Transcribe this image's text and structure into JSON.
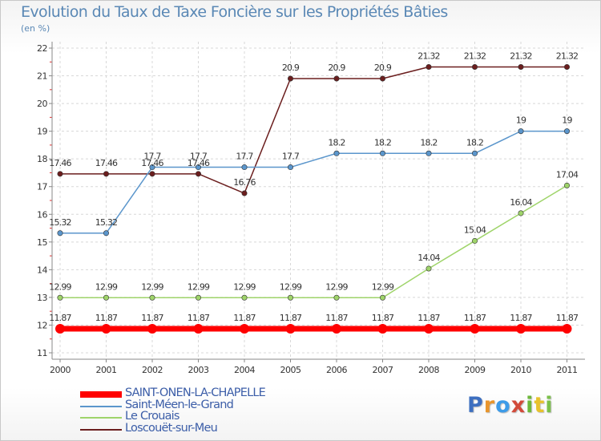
{
  "header": {
    "title": "Evolution du Taux de Taxe Foncière sur les Propriétés Bâties",
    "subtitle": "(en %)"
  },
  "brand": {
    "letters": [
      {
        "char": "P",
        "color": "#3d6fc0"
      },
      {
        "char": "r",
        "color": "#e8952c"
      },
      {
        "char": "o",
        "color": "#3d9be8"
      },
      {
        "char": "x",
        "color": "#d24a3a"
      },
      {
        "char": "i",
        "color": "#6db83a"
      },
      {
        "char": "t",
        "color": "#e8c22c"
      },
      {
        "char": "i",
        "color": "#7bc04a"
      }
    ]
  },
  "chart_data": {
    "type": "line",
    "title": "Evolution du Taux de Taxe Foncière sur les Propriétés Bâties",
    "ylabel": "(en %)",
    "x": [
      "2000",
      "2001",
      "2002",
      "2003",
      "2004",
      "2005",
      "2006",
      "2007",
      "2008",
      "2009",
      "2010",
      "2011"
    ],
    "ylim": [
      11,
      22
    ],
    "yticks": [
      11,
      12,
      13,
      14,
      15,
      16,
      17,
      18,
      19,
      20,
      21,
      22
    ],
    "grid": true,
    "legend_position": "bottom-left",
    "series": [
      {
        "name": "Loscouët-sur-Meu",
        "color": "#6b1e1e",
        "values": [
          17.46,
          17.46,
          17.46,
          17.46,
          16.76,
          20.9,
          20.9,
          20.9,
          21.32,
          21.32,
          21.32,
          21.32
        ],
        "labels": [
          "17.46",
          "17.46",
          "17.46",
          "17.46",
          "16.76",
          "20.9",
          "20.9",
          "20.9",
          "21.32",
          "21.32",
          "21.32",
          "21.32"
        ]
      },
      {
        "name": "Saint-Méen-le-Grand",
        "color": "#5b96cc",
        "values": [
          15.32,
          15.32,
          17.7,
          17.7,
          17.7,
          17.7,
          18.2,
          18.2,
          18.2,
          18.2,
          19,
          19
        ],
        "labels": [
          "15.32",
          "15.32",
          "17.7",
          "17.7",
          "17.7",
          "17.7",
          "18.2",
          "18.2",
          "18.2",
          "18.2",
          "19",
          "19"
        ]
      },
      {
        "name": "Le Crouais",
        "color": "#9fd46a",
        "values": [
          12.99,
          12.99,
          12.99,
          12.99,
          12.99,
          12.99,
          12.99,
          12.99,
          14.04,
          15.04,
          16.04,
          17.04
        ],
        "labels": [
          "12.99",
          "12.99",
          "12.99",
          "12.99",
          "12.99",
          "12.99",
          "12.99",
          "12.99",
          "14.04",
          "15.04",
          "16.04",
          "17.04"
        ]
      },
      {
        "name": "SAINT-ONEN-LA-CHAPELLE",
        "color": "#ff0000",
        "values": [
          11.87,
          11.87,
          11.87,
          11.87,
          11.87,
          11.87,
          11.87,
          11.87,
          11.87,
          11.87,
          11.87,
          11.87
        ],
        "labels": [
          "11.87",
          "11.87",
          "11.87",
          "11.87",
          "11.87",
          "11.87",
          "11.87",
          "11.87",
          "11.87",
          "11.87",
          "11.87",
          "11.87"
        ]
      }
    ],
    "legend": [
      {
        "name": "SAINT-ONEN-LA-CHAPELLE",
        "color": "#ff0000"
      },
      {
        "name": "Saint-Méen-le-Grand",
        "color": "#5b96cc"
      },
      {
        "name": "Le Crouais",
        "color": "#9fd46a"
      },
      {
        "name": "Loscouët-sur-Meu",
        "color": "#6b1e1e"
      }
    ]
  }
}
